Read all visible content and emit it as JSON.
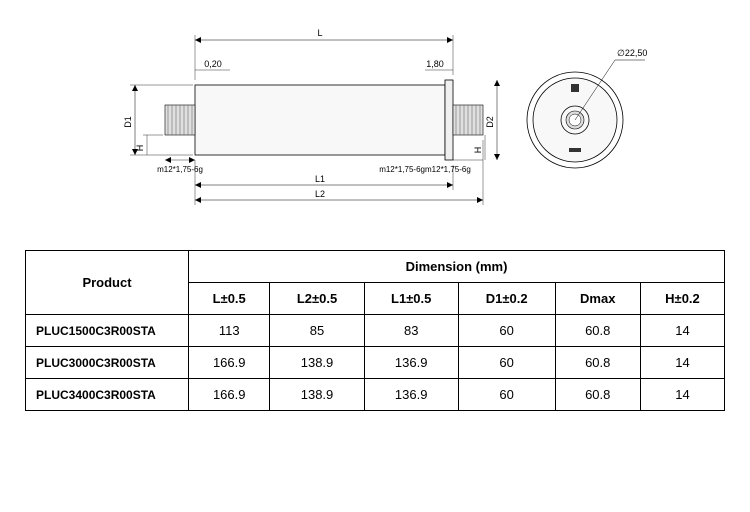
{
  "diagram": {
    "labels": {
      "L": "L",
      "L1": "L1",
      "L2": "L2",
      "D1": "D1",
      "D2": "D2",
      "H_left": "H",
      "H_right": "H",
      "dim_020": "0,20",
      "dim_180": "1,80",
      "thread_left": "m12*1,75-6g",
      "thread_right": "m12*1,75-6g",
      "diameter": "∅22,50"
    },
    "colors": {
      "outline": "#000000",
      "body_fill": "#f5f5f5",
      "thread_fill": "#dddddd",
      "hatch": "#888888"
    }
  },
  "table": {
    "header_product": "Product",
    "header_dimension": "Dimension (mm)",
    "columns": [
      "L±0.5",
      "L2±0.5",
      "L1±0.5",
      "D1±0.2",
      "Dmax",
      "H±0.2"
    ],
    "rows": [
      {
        "product": "PLUC1500C3R00STA",
        "values": [
          "113",
          "85",
          "83",
          "60",
          "60.8",
          "14"
        ]
      },
      {
        "product": "PLUC3000C3R00STA",
        "values": [
          "166.9",
          "138.9",
          "136.9",
          "60",
          "60.8",
          "14"
        ]
      },
      {
        "product": "PLUC3400C3R00STA",
        "values": [
          "166.9",
          "138.9",
          "136.9",
          "60",
          "60.8",
          "14"
        ]
      }
    ]
  }
}
